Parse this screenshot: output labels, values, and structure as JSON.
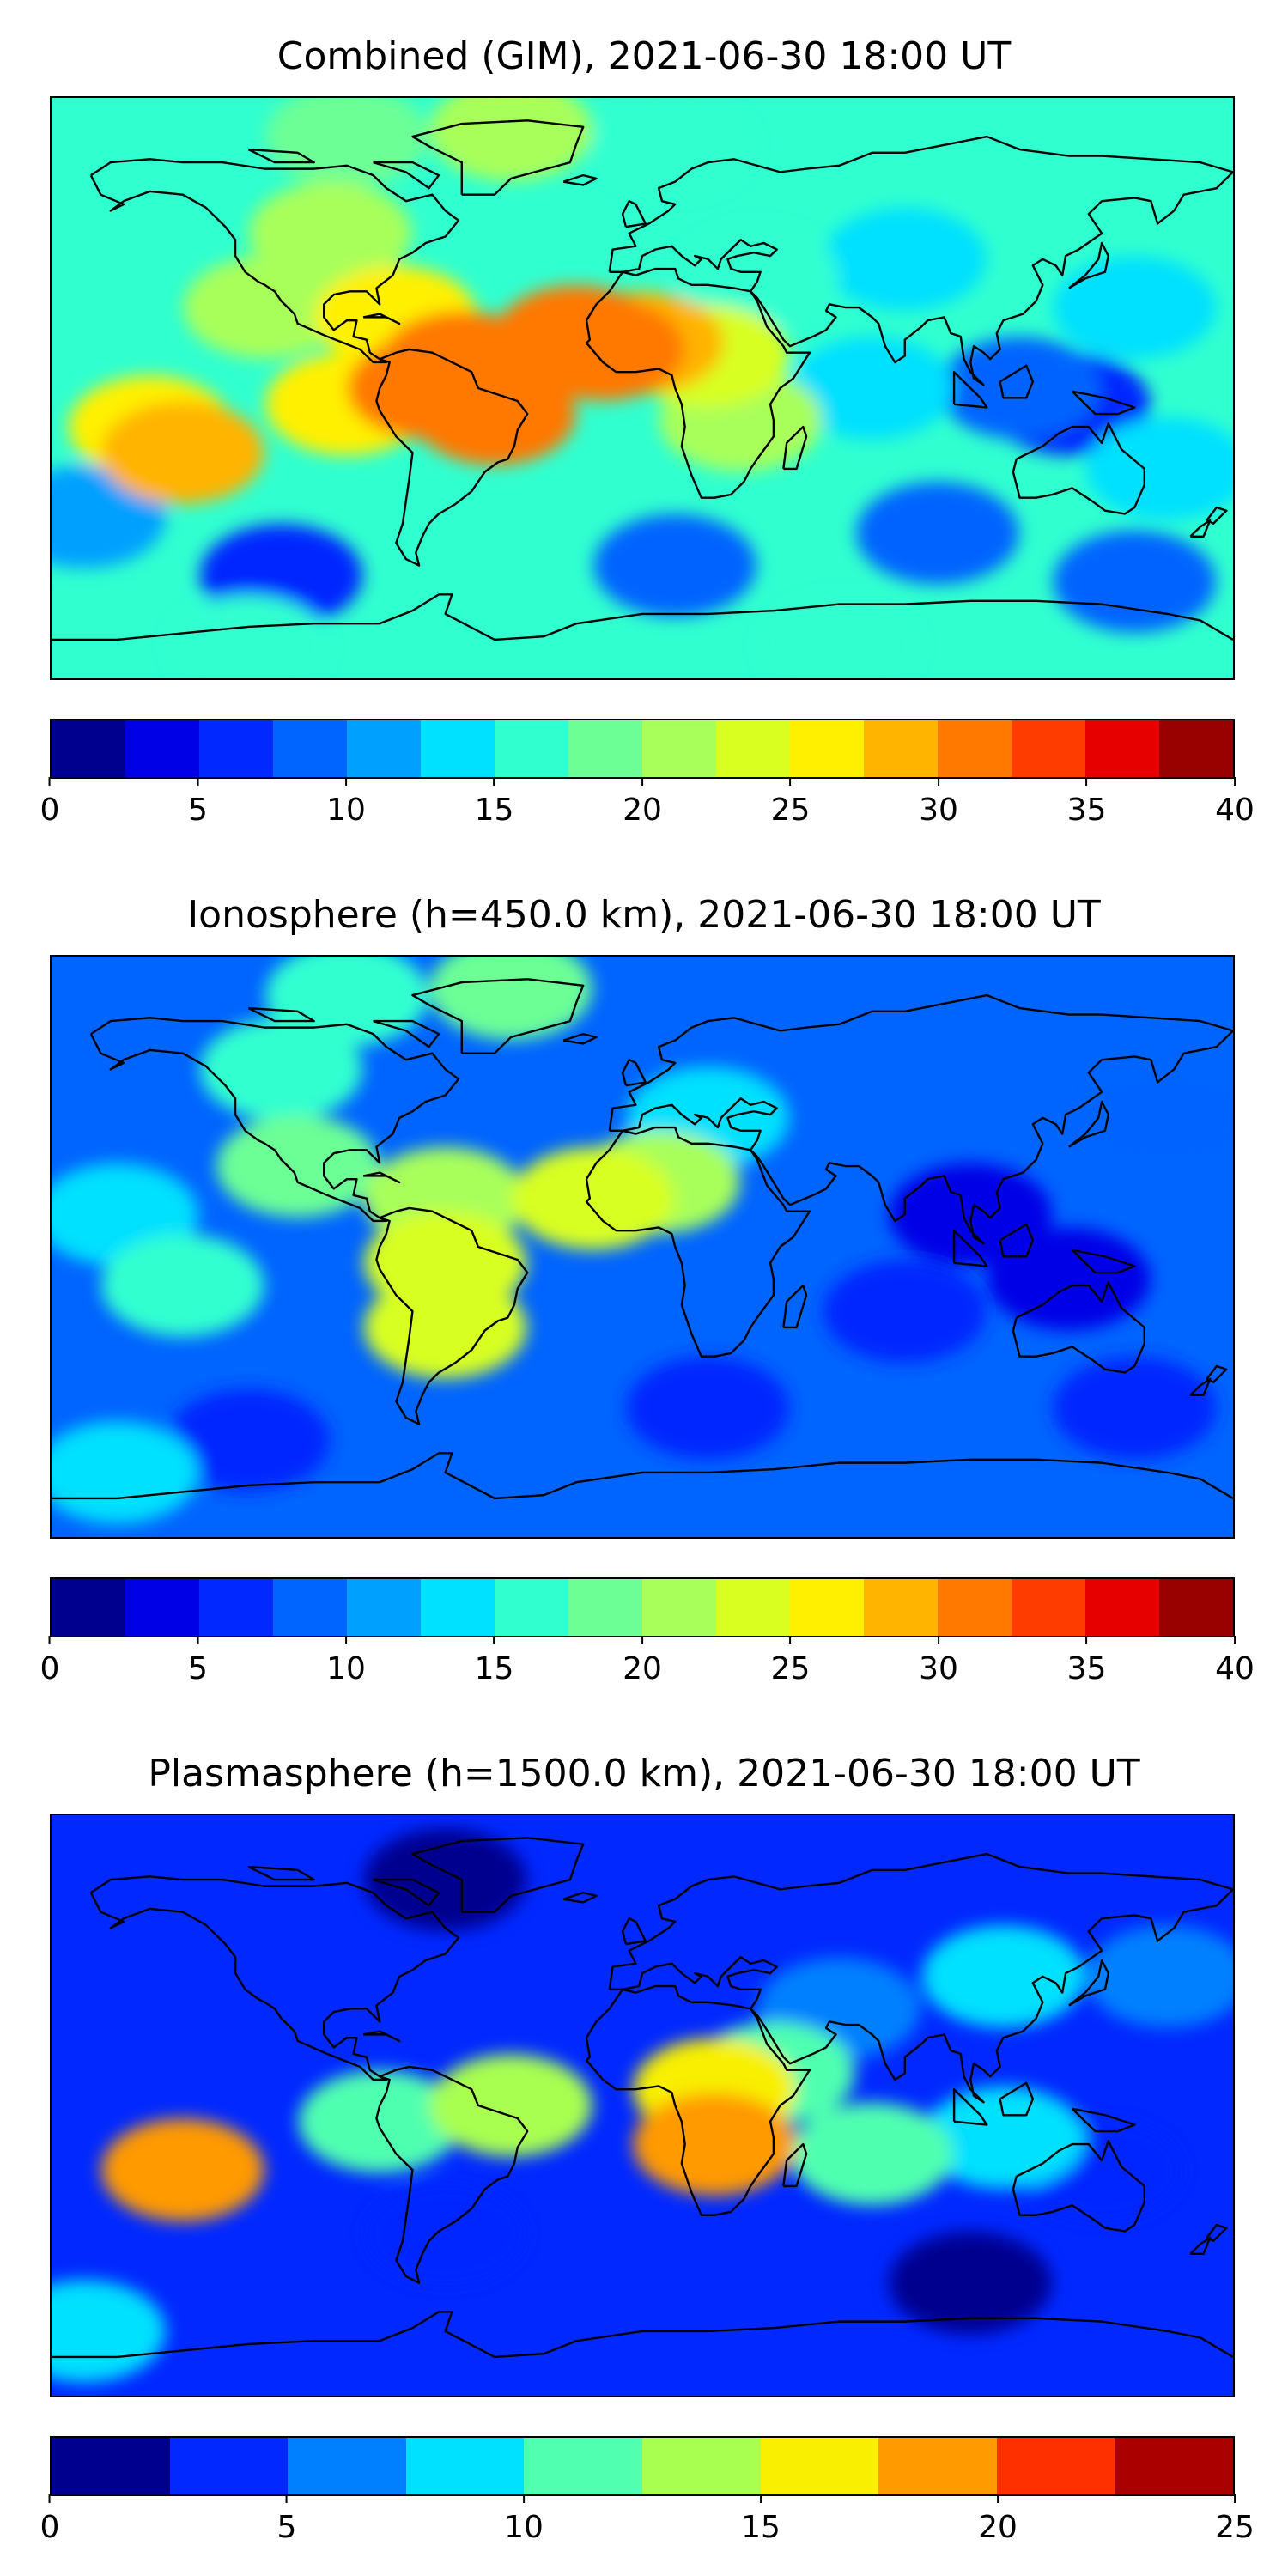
{
  "panels": [
    {
      "title": "Combined (GIM), 2021-06-30 18:00 UT",
      "colorbar": {
        "colors": [
          "#00008f",
          "#0000e6",
          "#0028ff",
          "#0064ff",
          "#00a0ff",
          "#00e0ff",
          "#30ffd0",
          "#6cff96",
          "#a8ff5a",
          "#d8ff20",
          "#fff000",
          "#ffb400",
          "#ff7800",
          "#ff3c00",
          "#e60000",
          "#990000"
        ],
        "tick_labels": [
          "0",
          "5",
          "10",
          "15",
          "20",
          "25",
          "30",
          "35",
          "40"
        ],
        "range": [
          0,
          40
        ]
      },
      "field": {
        "background_level": 6,
        "blobs": [
          {
            "lon": -90,
            "lat": 78,
            "level": 7
          },
          {
            "lon": -40,
            "lat": 80,
            "level": 8
          },
          {
            "lon": 10,
            "lat": 75,
            "level": 6
          },
          {
            "lon": -95,
            "lat": 48,
            "level": 8
          },
          {
            "lon": -115,
            "lat": 25,
            "level": 8
          },
          {
            "lon": -75,
            "lat": 22,
            "level": 10
          },
          {
            "lon": -55,
            "lat": 8,
            "level": 12
          },
          {
            "lon": -20,
            "lat": 16,
            "level": 12
          },
          {
            "lon": 0,
            "lat": 14,
            "level": 11
          },
          {
            "lon": -12,
            "lat": 12,
            "level": 12
          },
          {
            "lon": -65,
            "lat": 0,
            "level": 12
          },
          {
            "lon": -45,
            "lat": -8,
            "level": 12
          },
          {
            "lon": -90,
            "lat": -5,
            "level": 10
          },
          {
            "lon": -150,
            "lat": -12,
            "level": 10
          },
          {
            "lon": -140,
            "lat": -20,
            "level": 11
          },
          {
            "lon": 20,
            "lat": 10,
            "level": 9
          },
          {
            "lon": 30,
            "lat": -10,
            "level": 8
          },
          {
            "lon": 35,
            "lat": 35,
            "level": 6
          },
          {
            "lon": 80,
            "lat": 40,
            "level": 5
          },
          {
            "lon": 70,
            "lat": 0,
            "level": 5
          },
          {
            "lon": 115,
            "lat": 0,
            "level": 3
          },
          {
            "lon": 130,
            "lat": -5,
            "level": 2
          },
          {
            "lon": 150,
            "lat": 25,
            "level": 5
          },
          {
            "lon": 160,
            "lat": -25,
            "level": 5
          },
          {
            "lon": -170,
            "lat": -40,
            "level": 4
          },
          {
            "lon": -110,
            "lat": -58,
            "level": 2
          },
          {
            "lon": 10,
            "lat": -55,
            "level": 3
          },
          {
            "lon": 90,
            "lat": -45,
            "level": 3
          },
          {
            "lon": 150,
            "lat": -60,
            "level": 3
          },
          {
            "lon": -120,
            "lat": -80,
            "level": 6
          },
          {
            "lon": 60,
            "lat": -80,
            "level": 6
          }
        ]
      }
    },
    {
      "title": "Ionosphere  (h=450.0 km), 2021-06-30 18:00 UT",
      "colorbar": {
        "colors": [
          "#00008f",
          "#0000e6",
          "#0028ff",
          "#0064ff",
          "#00a0ff",
          "#00e0ff",
          "#30ffd0",
          "#6cff96",
          "#a8ff5a",
          "#d8ff20",
          "#fff000",
          "#ffb400",
          "#ff7800",
          "#ff3c00",
          "#e60000",
          "#990000"
        ],
        "tick_labels": [
          "0",
          "5",
          "10",
          "15",
          "20",
          "25",
          "30",
          "35",
          "40"
        ],
        "range": [
          0,
          40
        ]
      },
      "field": {
        "background_level": 3,
        "blobs": [
          {
            "lon": -90,
            "lat": 78,
            "level": 6
          },
          {
            "lon": -40,
            "lat": 80,
            "level": 7
          },
          {
            "lon": -110,
            "lat": 55,
            "level": 6
          },
          {
            "lon": -105,
            "lat": 25,
            "level": 7
          },
          {
            "lon": -60,
            "lat": 15,
            "level": 8
          },
          {
            "lon": -15,
            "lat": 15,
            "level": 9
          },
          {
            "lon": 5,
            "lat": 20,
            "level": 8
          },
          {
            "lon": -60,
            "lat": -5,
            "level": 9
          },
          {
            "lon": -60,
            "lat": -25,
            "level": 9
          },
          {
            "lon": -140,
            "lat": -12,
            "level": 6
          },
          {
            "lon": -160,
            "lat": 10,
            "level": 5
          },
          {
            "lon": 20,
            "lat": 40,
            "level": 5
          },
          {
            "lon": 100,
            "lat": 10,
            "level": 1
          },
          {
            "lon": 130,
            "lat": -10,
            "level": 1
          },
          {
            "lon": 80,
            "lat": -20,
            "level": 2
          },
          {
            "lon": -120,
            "lat": -60,
            "level": 2
          },
          {
            "lon": 20,
            "lat": -50,
            "level": 2
          },
          {
            "lon": 150,
            "lat": -50,
            "level": 2
          },
          {
            "lon": -160,
            "lat": -70,
            "level": 5
          },
          {
            "lon": 160,
            "lat": 40,
            "level": 3
          }
        ]
      }
    },
    {
      "title": "Plasmasphere (h=1500.0 km), 2021-06-30 18:00 UT",
      "colorbar": {
        "colors": [
          "#00008f",
          "#0028ff",
          "#0080ff",
          "#00e0ff",
          "#50ffb0",
          "#a8ff50",
          "#f8f000",
          "#ff9a00",
          "#ff3000",
          "#aa0000"
        ],
        "tick_labels": [
          "0",
          "5",
          "10",
          "15",
          "20",
          "25"
        ],
        "range": [
          0,
          25
        ]
      },
      "field": {
        "background_level": 1,
        "blobs": [
          {
            "lon": -60,
            "lat": 70,
            "level": 0
          },
          {
            "lon": 110,
            "lat": 40,
            "level": 3
          },
          {
            "lon": 160,
            "lat": 40,
            "level": 2
          },
          {
            "lon": 60,
            "lat": 30,
            "level": 2
          },
          {
            "lon": -40,
            "lat": 0,
            "level": 5
          },
          {
            "lon": -80,
            "lat": -5,
            "level": 4
          },
          {
            "lon": 22,
            "lat": 5,
            "level": 6
          },
          {
            "lon": 22,
            "lat": -12,
            "level": 7
          },
          {
            "lon": 40,
            "lat": 10,
            "level": 4
          },
          {
            "lon": -140,
            "lat": -20,
            "level": 7
          },
          {
            "lon": 70,
            "lat": -15,
            "level": 4
          },
          {
            "lon": 110,
            "lat": -10,
            "level": 3
          },
          {
            "lon": 140,
            "lat": -20,
            "level": 1
          },
          {
            "lon": -60,
            "lat": -40,
            "level": 1
          },
          {
            "lon": 100,
            "lat": -55,
            "level": 0
          },
          {
            "lon": -170,
            "lat": -70,
            "level": 3
          }
        ]
      }
    }
  ]
}
